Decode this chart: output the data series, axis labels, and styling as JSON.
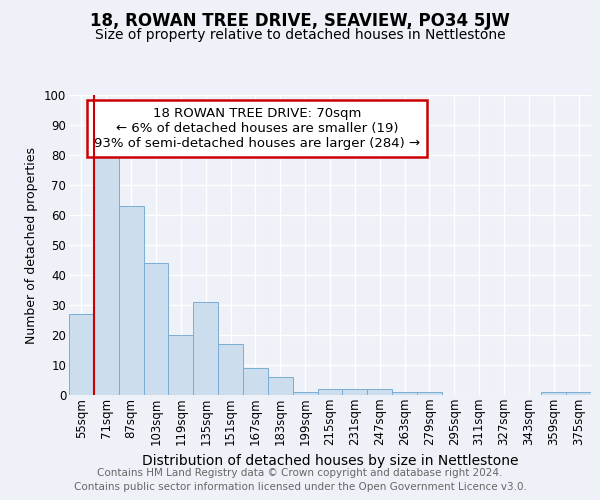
{
  "title": "18, ROWAN TREE DRIVE, SEAVIEW, PO34 5JW",
  "subtitle": "Size of property relative to detached houses in Nettlestone",
  "xlabel": "Distribution of detached houses by size in Nettlestone",
  "ylabel": "Number of detached properties",
  "categories": [
    "55sqm",
    "71sqm",
    "87sqm",
    "103sqm",
    "119sqm",
    "135sqm",
    "151sqm",
    "167sqm",
    "183sqm",
    "199sqm",
    "215sqm",
    "231sqm",
    "247sqm",
    "263sqm",
    "279sqm",
    "295sqm",
    "311sqm",
    "327sqm",
    "343sqm",
    "359sqm",
    "375sqm"
  ],
  "values": [
    27,
    80,
    63,
    44,
    20,
    31,
    17,
    9,
    6,
    1,
    2,
    2,
    2,
    1,
    1,
    0,
    0,
    0,
    0,
    1,
    1
  ],
  "bar_color": "#ccdded",
  "bar_edge_color": "#7aadd4",
  "property_line_index": 1,
  "annotation_line1": "18 ROWAN TREE DRIVE: 70sqm",
  "annotation_line2": "← 6% of detached houses are smaller (19)",
  "annotation_line3": "93% of semi-detached houses are larger (284) →",
  "annotation_box_color": "white",
  "annotation_box_edge_color": "#cc0000",
  "vline_color": "#cc0000",
  "ylim": [
    0,
    100
  ],
  "background_color": "#eef2f8",
  "footer_line1": "Contains HM Land Registry data © Crown copyright and database right 2024.",
  "footer_line2": "Contains public sector information licensed under the Open Government Licence v3.0.",
  "title_fontsize": 12,
  "subtitle_fontsize": 10,
  "xlabel_fontsize": 10,
  "ylabel_fontsize": 9,
  "tick_fontsize": 8.5,
  "footer_fontsize": 7.5,
  "annotation_fontsize": 9.5
}
